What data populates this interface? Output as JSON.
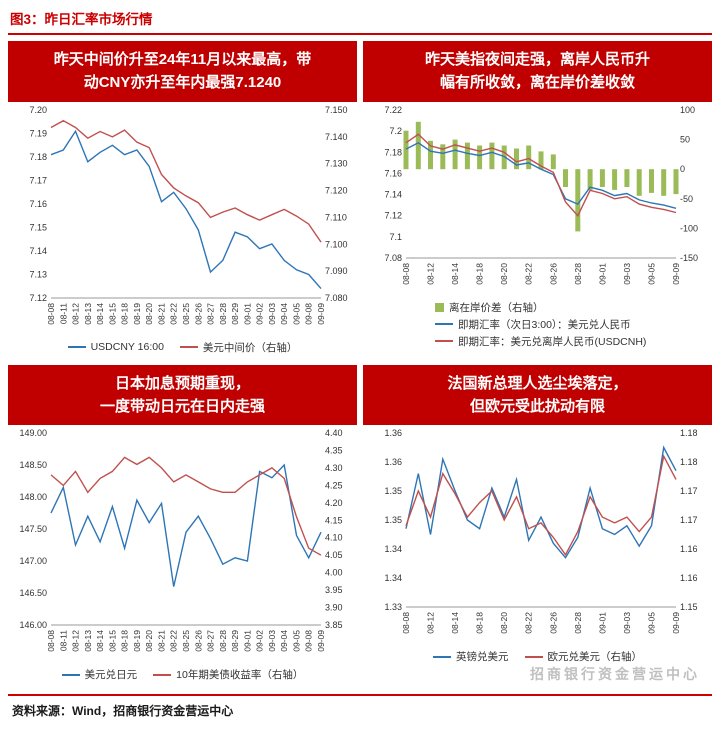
{
  "header": {
    "title": "图3：昨日汇率市场行情"
  },
  "footer": {
    "source": "资料来源：Wind，招商银行资金营运中心"
  },
  "watermark": "招商银行资金营运中心",
  "colors": {
    "accent_red": "#c00000",
    "line_blue": "#2e75b6",
    "line_red": "#c0504d",
    "bar_green": "#9bbb59"
  },
  "chart_data": [
    {
      "type": "line",
      "title_lines": [
        "昨天中间价升至24年11月以来最高，带",
        "动CNY亦升至年内最强7.1240"
      ],
      "x": [
        "08-08",
        "08-11",
        "08-12",
        "08-13",
        "08-14",
        "08-15",
        "08-18",
        "08-19",
        "08-20",
        "08-21",
        "08-22",
        "08-25",
        "08-26",
        "08-27",
        "08-28",
        "08-29",
        "09-01",
        "09-02",
        "09-03",
        "09-04",
        "09-05",
        "09-08",
        "09-09"
      ],
      "label_every": 1,
      "legend_layout": "horizontal",
      "left_axis": {
        "min": 7.12,
        "max": 7.2,
        "ticks": [
          "7.20",
          "7.19",
          "7.18",
          "7.17",
          "7.16",
          "7.15",
          "7.14",
          "7.13",
          "7.12"
        ]
      },
      "right_axis": {
        "min": 7.08,
        "max": 7.15,
        "ticks": [
          "7.150",
          "7.140",
          "7.130",
          "7.120",
          "7.110",
          "7.100",
          "7.090",
          "7.080"
        ]
      },
      "series": [
        {
          "name": "USDCNY 16:00",
          "kind": "line",
          "axis": "left",
          "color": "#2e75b6",
          "values": [
            7.181,
            7.183,
            7.191,
            7.178,
            7.182,
            7.185,
            7.181,
            7.183,
            7.176,
            7.161,
            7.165,
            7.158,
            7.149,
            7.131,
            7.136,
            7.148,
            7.146,
            7.141,
            7.143,
            7.136,
            7.132,
            7.13,
            7.124
          ]
        },
        {
          "name": "美元中间价（右轴）",
          "kind": "line",
          "axis": "right",
          "color": "#c0504d",
          "values": [
            7.1435,
            7.146,
            7.1435,
            7.1395,
            7.142,
            7.14,
            7.1425,
            7.138,
            7.136,
            7.126,
            7.121,
            7.118,
            7.1155,
            7.11,
            7.112,
            7.1135,
            7.111,
            7.109,
            7.111,
            7.113,
            7.1105,
            7.1075,
            7.1008
          ]
        }
      ]
    },
    {
      "type": "line+bar",
      "title_lines": [
        "昨天美指夜间走强，离岸人民币升",
        "幅有所收敛，离在岸价差收敛"
      ],
      "x": [
        "08-08",
        "08-11",
        "08-12",
        "08-13",
        "08-14",
        "08-15",
        "08-18",
        "08-19",
        "08-20",
        "08-21",
        "08-22",
        "08-25",
        "08-26",
        "08-27",
        "08-28",
        "08-29",
        "09-01",
        "09-02",
        "09-03",
        "09-04",
        "09-05",
        "09-08",
        "09-09"
      ],
      "label_every": 2,
      "legend_layout": "vertical",
      "left_axis": {
        "min": 7.08,
        "max": 7.22,
        "ticks": [
          "7.22",
          "7.2",
          "7.18",
          "7.16",
          "7.14",
          "7.12",
          "7.1",
          "7.08"
        ]
      },
      "right_axis": {
        "min": -150,
        "max": 100,
        "ticks": [
          "100",
          "50",
          "0",
          "-50",
          "-100",
          "-150"
        ]
      },
      "series": [
        {
          "name": "离在岸价差（右轴）",
          "kind": "bar",
          "axis": "right",
          "color": "#9bbb59",
          "values": [
            65,
            80,
            48,
            42,
            50,
            45,
            40,
            45,
            40,
            35,
            40,
            30,
            25,
            -30,
            -105,
            -35,
            -30,
            -35,
            -30,
            -45,
            -40,
            -45,
            -42
          ]
        },
        {
          "name": "即期汇率（次日3:00）：美元兑人民币",
          "kind": "line",
          "axis": "left",
          "color": "#2e75b6",
          "values": [
            7.183,
            7.189,
            7.181,
            7.179,
            7.182,
            7.179,
            7.177,
            7.18,
            7.176,
            7.168,
            7.17,
            7.164,
            7.159,
            7.136,
            7.131,
            7.147,
            7.144,
            7.139,
            7.141,
            7.135,
            7.132,
            7.13,
            7.127
          ]
        },
        {
          "name": "即期汇率：美元兑离岸人民币(USDCNH)",
          "kind": "line",
          "axis": "left",
          "color": "#c0504d",
          "values": [
            7.189,
            7.197,
            7.186,
            7.183,
            7.187,
            7.184,
            7.181,
            7.184,
            7.18,
            7.171,
            7.174,
            7.167,
            7.161,
            7.133,
            7.12,
            7.144,
            7.141,
            7.136,
            7.138,
            7.131,
            7.128,
            7.126,
            7.123
          ]
        }
      ]
    },
    {
      "type": "line",
      "title_lines": [
        "日本加息预期重现，",
        "一度带动日元在日内走强"
      ],
      "x": [
        "08-08",
        "08-11",
        "08-12",
        "08-13",
        "08-14",
        "08-15",
        "08-18",
        "08-19",
        "08-20",
        "08-21",
        "08-22",
        "08-25",
        "08-26",
        "08-27",
        "08-28",
        "08-29",
        "09-01",
        "09-02",
        "09-03",
        "09-04",
        "09-05",
        "09-08",
        "09-09"
      ],
      "label_every": 1,
      "legend_layout": "horizontal",
      "left_axis": {
        "min": 146.0,
        "max": 149.0,
        "ticks": [
          "149.00",
          "148.50",
          "148.00",
          "147.50",
          "147.00",
          "146.50",
          "146.00"
        ]
      },
      "right_axis": {
        "min": 3.85,
        "max": 4.4,
        "ticks": [
          "4.40",
          "4.35",
          "4.30",
          "4.25",
          "4.20",
          "4.15",
          "4.10",
          "4.05",
          "4.00",
          "3.95",
          "3.90",
          "3.85"
        ]
      },
      "series": [
        {
          "name": "美元兑日元",
          "kind": "line",
          "axis": "left",
          "color": "#2e75b6",
          "values": [
            147.75,
            148.15,
            147.25,
            147.7,
            147.3,
            147.85,
            147.2,
            147.95,
            147.6,
            147.9,
            146.6,
            147.45,
            147.7,
            147.35,
            146.95,
            147.05,
            147.0,
            148.4,
            148.3,
            148.5,
            147.4,
            147.05,
            147.45
          ]
        },
        {
          "name": "10年期美债收益率（右轴）",
          "kind": "line",
          "axis": "right",
          "color": "#c0504d",
          "values": [
            4.28,
            4.25,
            4.29,
            4.23,
            4.27,
            4.29,
            4.33,
            4.31,
            4.33,
            4.3,
            4.26,
            4.28,
            4.26,
            4.24,
            4.23,
            4.23,
            4.26,
            4.28,
            4.3,
            4.27,
            4.16,
            4.07,
            4.05
          ]
        }
      ]
    },
    {
      "type": "line",
      "title_lines": [
        "法国新总理人选尘埃落定，",
        "但欧元受此扰动有限"
      ],
      "x": [
        "08-08",
        "08-11",
        "08-12",
        "08-13",
        "08-14",
        "08-15",
        "08-18",
        "08-19",
        "08-20",
        "08-21",
        "08-22",
        "08-25",
        "08-26",
        "08-27",
        "08-28",
        "08-29",
        "09-01",
        "09-02",
        "09-03",
        "09-04",
        "09-05",
        "09-08",
        "09-09"
      ],
      "label_every": 2,
      "legend_layout": "horizontal",
      "left_axis": {
        "min": 1.33,
        "max": 1.36,
        "ticks": [
          "1.36",
          "1.36",
          "1.35",
          "1.35",
          "1.34",
          "1.34",
          "1.33"
        ]
      },
      "right_axis": {
        "min": 1.15,
        "max": 1.18,
        "ticks": [
          "1.18",
          "1.18",
          "1.17",
          "1.17",
          "1.16",
          "1.16",
          "1.15"
        ]
      },
      "series": [
        {
          "name": "英镑兑美元",
          "kind": "line",
          "axis": "left",
          "color": "#2e75b6",
          "values": [
            1.3435,
            1.353,
            1.3425,
            1.3555,
            1.35,
            1.345,
            1.3435,
            1.3505,
            1.3455,
            1.352,
            1.3415,
            1.3455,
            1.341,
            1.3385,
            1.342,
            1.3505,
            1.3435,
            1.3425,
            1.344,
            1.3405,
            1.344,
            1.3575,
            1.3535
          ]
        },
        {
          "name": "欧元兑美元（右轴）",
          "kind": "line",
          "axis": "right",
          "color": "#c0504d",
          "values": [
            1.164,
            1.17,
            1.1655,
            1.173,
            1.1695,
            1.1655,
            1.168,
            1.17,
            1.165,
            1.169,
            1.1635,
            1.1645,
            1.162,
            1.159,
            1.163,
            1.169,
            1.1655,
            1.1645,
            1.1655,
            1.163,
            1.1655,
            1.176,
            1.172
          ]
        }
      ]
    }
  ]
}
